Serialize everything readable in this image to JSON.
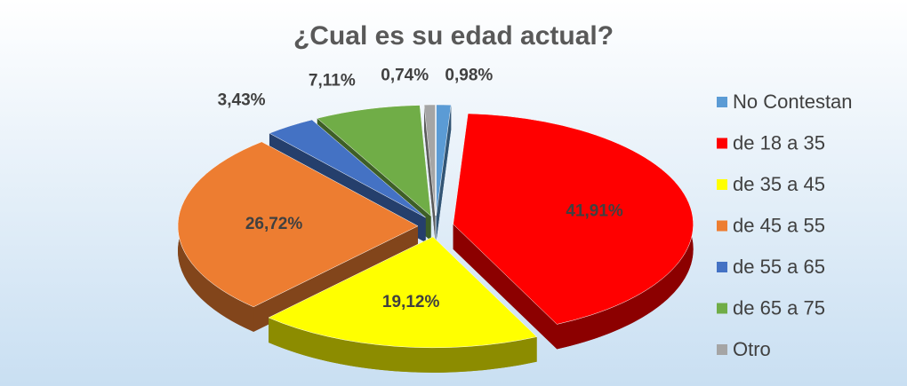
{
  "chart_data": {
    "type": "pie3d",
    "title": "¿Cual es su edad actual?",
    "categories": [
      "No Contestan",
      "de 18 a 35",
      "de 35 a 45",
      "de 45 a 55",
      "de 55 a 65",
      "de 65 a 75",
      "Otro"
    ],
    "values": [
      0.98,
      41.91,
      19.12,
      26.72,
      3.43,
      7.11,
      0.74
    ],
    "value_labels": [
      "0,98%",
      "41,91%",
      "19,12%",
      "26,72%",
      "3,43%",
      "7,11%",
      "0,74%"
    ],
    "colors": [
      "#5b9bd5",
      "#ff0000",
      "#ffff00",
      "#ed7d31",
      "#4472c4",
      "#70ad47",
      "#a5a5a5"
    ],
    "legend": "right"
  }
}
